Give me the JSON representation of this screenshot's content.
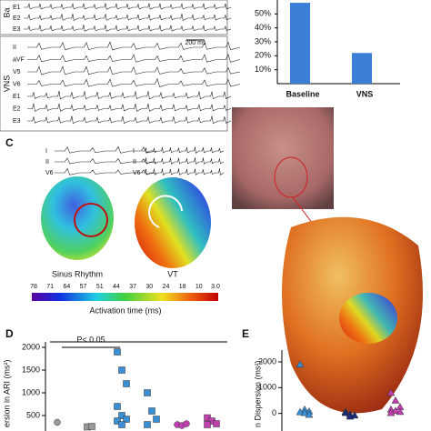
{
  "panelA": {
    "baseline_label": "Ba",
    "baseline_leads": [
      "E1",
      "E2",
      "E3"
    ],
    "vns_label": "VNS",
    "vns_leads": [
      "II",
      "aVF",
      "V5",
      "V6",
      "E1",
      "E2",
      "E3"
    ],
    "scale": "200 ms"
  },
  "panelB": {
    "chart_data": {
      "type": "bar",
      "categories": [
        "Baseline",
        "VNS"
      ],
      "values": [
        58,
        22
      ],
      "color": "#3a7fd5",
      "ylim": [
        0,
        60
      ],
      "yticks": [
        {
          "value": 10,
          "label": "10%"
        },
        {
          "value": 20,
          "label": "20%"
        },
        {
          "value": 30,
          "label": "30%"
        },
        {
          "value": 40,
          "label": "40%"
        },
        {
          "value": 50,
          "label": "50%"
        }
      ]
    }
  },
  "panelC": {
    "letter": "C",
    "leads_left": [
      "I",
      "II",
      "V6"
    ],
    "leads_right": [
      "I",
      "II",
      "V6"
    ],
    "map_left": "Sinus Rhythm",
    "map_right": "VT",
    "colorbar_labels": [
      "78",
      "71",
      "64",
      "57",
      "51",
      "44",
      "37",
      "30",
      "24",
      "18",
      "10",
      "3.0"
    ],
    "colorbar_title": "Activation time (ms)"
  },
  "panelD": {
    "chart_data": {
      "type": "scatter",
      "letter": "D",
      "y_label": "ersion in ARI (ms²)",
      "annotation": "P< 0.05",
      "ylim": [
        0,
        2000
      ],
      "yticks": [
        500,
        1000,
        1500,
        2000
      ],
      "series": [
        {
          "color": "#999999",
          "marker": "circle",
          "values": [
            350
          ]
        },
        {
          "color": "#999999",
          "marker": "square",
          "values": [
            250,
            260
          ]
        },
        {
          "color": "#3a8fd5",
          "marker": "square",
          "values": [
            1900,
            1500,
            1200,
            700,
            500,
            420,
            380,
            300
          ]
        },
        {
          "color": "#3a8fd5",
          "marker": "square",
          "values": [
            1000,
            600,
            420,
            300
          ]
        },
        {
          "color": "#c040b0",
          "marker": "circle",
          "values": [
            300,
            280,
            320
          ]
        },
        {
          "color": "#c040b0",
          "marker": "square",
          "values": [
            450,
            380,
            320,
            300
          ]
        }
      ]
    }
  },
  "panelE": {
    "chart_data": {
      "type": "scatter",
      "letter": "E",
      "y_label": "n Dispersion (ms²)",
      "ylim": [
        -1000,
        2000
      ],
      "yticks": [
        0,
        1000,
        2000
      ],
      "series": [
        {
          "color": "#3a8fd5",
          "marker": "triangle",
          "values": [
            1900,
            150,
            80,
            50,
            20,
            -50
          ]
        },
        {
          "color": "#1a2a7a",
          "marker": "triangle",
          "values": [
            60,
            -40,
            -80,
            20,
            -120
          ]
        },
        {
          "color": "#c040b0",
          "marker": "triangle",
          "values": [
            800,
            500,
            250,
            150,
            100,
            60,
            20
          ]
        }
      ]
    }
  }
}
